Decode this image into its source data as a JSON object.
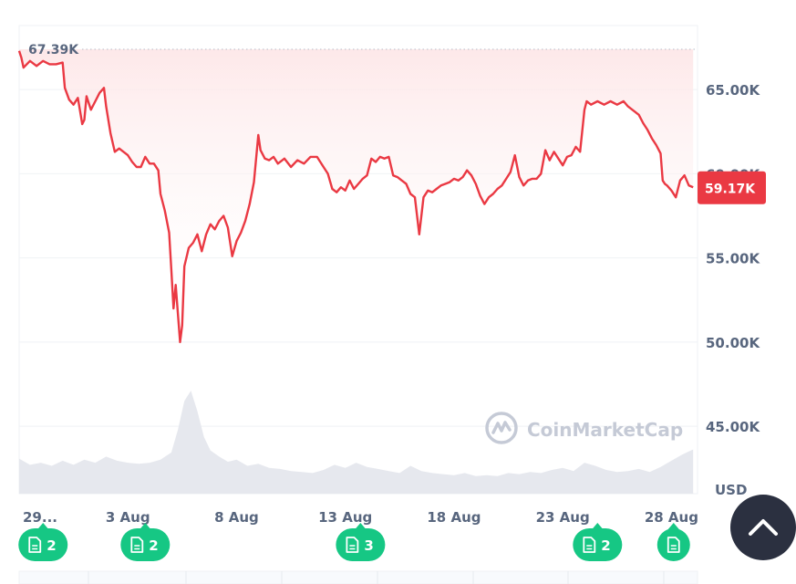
{
  "chart_data": {
    "type": "line",
    "currency_label": "USD",
    "y_ticks": [
      {
        "value": 65000,
        "label": "65.00K"
      },
      {
        "value": 60000,
        "label": "60.00K"
      },
      {
        "value": 55000,
        "label": "55.00K"
      },
      {
        "value": 50000,
        "label": "50.00K"
      },
      {
        "value": 45000,
        "label": "45.00K"
      }
    ],
    "ylim": [
      41000,
      68800
    ],
    "x_ticks": [
      {
        "day": 29,
        "label": "29..."
      },
      {
        "day": 34,
        "label": "3 Aug"
      },
      {
        "day": 39,
        "label": "8 Aug"
      },
      {
        "day": 44,
        "label": "13 Aug"
      },
      {
        "day": 49,
        "label": "18 Aug"
      },
      {
        "day": 54,
        "label": "23 Aug"
      },
      {
        "day": 59,
        "label": "28 Aug"
      }
    ],
    "xlim": [
      29,
      60.2
    ],
    "max_reference": {
      "value": 67390,
      "label": "67.39K"
    },
    "current_price": {
      "value": 59170,
      "label": "59.17K"
    },
    "series": [
      {
        "points": [
          [
            29.0,
            67300
          ],
          [
            29.1,
            66900
          ],
          [
            29.2,
            66300
          ],
          [
            29.5,
            66700
          ],
          [
            29.8,
            66400
          ],
          [
            30.1,
            66700
          ],
          [
            30.4,
            66500
          ],
          [
            30.7,
            66500
          ],
          [
            31.0,
            66600
          ],
          [
            31.1,
            65100
          ],
          [
            31.3,
            64400
          ],
          [
            31.5,
            64100
          ],
          [
            31.7,
            64500
          ],
          [
            31.9,
            62950
          ],
          [
            32.0,
            63200
          ],
          [
            32.1,
            64600
          ],
          [
            32.3,
            63800
          ],
          [
            32.5,
            64300
          ],
          [
            32.7,
            64800
          ],
          [
            32.9,
            65100
          ],
          [
            33.0,
            64000
          ],
          [
            33.2,
            62400
          ],
          [
            33.4,
            61300
          ],
          [
            33.6,
            61500
          ],
          [
            33.8,
            61300
          ],
          [
            34.0,
            61100
          ],
          [
            34.2,
            60700
          ],
          [
            34.4,
            60400
          ],
          [
            34.6,
            60400
          ],
          [
            34.8,
            61000
          ],
          [
            35.0,
            60600
          ],
          [
            35.2,
            60600
          ],
          [
            35.4,
            60200
          ],
          [
            35.5,
            58800
          ],
          [
            35.7,
            57800
          ],
          [
            35.9,
            56500
          ],
          [
            36.0,
            54300
          ],
          [
            36.1,
            52000
          ],
          [
            36.2,
            53400
          ],
          [
            36.3,
            51700
          ],
          [
            36.4,
            50000
          ],
          [
            36.5,
            51000
          ],
          [
            36.6,
            54500
          ],
          [
            36.8,
            55600
          ],
          [
            37.0,
            55900
          ],
          [
            37.2,
            56400
          ],
          [
            37.4,
            55400
          ],
          [
            37.6,
            56400
          ],
          [
            37.8,
            57000
          ],
          [
            38.0,
            56700
          ],
          [
            38.2,
            57200
          ],
          [
            38.4,
            57500
          ],
          [
            38.6,
            56800
          ],
          [
            38.8,
            55100
          ],
          [
            39.0,
            56000
          ],
          [
            39.2,
            56500
          ],
          [
            39.4,
            57200
          ],
          [
            39.6,
            58200
          ],
          [
            39.8,
            59500
          ],
          [
            40.0,
            62300
          ],
          [
            40.1,
            61400
          ],
          [
            40.3,
            60900
          ],
          [
            40.5,
            60800
          ],
          [
            40.7,
            61000
          ],
          [
            40.9,
            60600
          ],
          [
            41.2,
            60900
          ],
          [
            41.5,
            60400
          ],
          [
            41.8,
            60800
          ],
          [
            42.1,
            60600
          ],
          [
            42.4,
            61000
          ],
          [
            42.7,
            61000
          ],
          [
            43.0,
            60400
          ],
          [
            43.2,
            60000
          ],
          [
            43.4,
            59100
          ],
          [
            43.6,
            58900
          ],
          [
            43.8,
            59200
          ],
          [
            44.0,
            59000
          ],
          [
            44.2,
            59600
          ],
          [
            44.4,
            59100
          ],
          [
            44.6,
            59400
          ],
          [
            44.8,
            59700
          ],
          [
            45.0,
            59900
          ],
          [
            45.2,
            60900
          ],
          [
            45.4,
            60700
          ],
          [
            45.6,
            61000
          ],
          [
            45.8,
            60900
          ],
          [
            46.0,
            61000
          ],
          [
            46.2,
            59900
          ],
          [
            46.4,
            59800
          ],
          [
            46.6,
            59600
          ],
          [
            46.8,
            59400
          ],
          [
            47.0,
            58800
          ],
          [
            47.2,
            58600
          ],
          [
            47.3,
            57500
          ],
          [
            47.4,
            56400
          ],
          [
            47.6,
            58600
          ],
          [
            47.8,
            59000
          ],
          [
            48.0,
            58900
          ],
          [
            48.2,
            59100
          ],
          [
            48.4,
            59300
          ],
          [
            48.6,
            59400
          ],
          [
            48.8,
            59500
          ],
          [
            49.0,
            59700
          ],
          [
            49.2,
            59600
          ],
          [
            49.4,
            59800
          ],
          [
            49.6,
            60200
          ],
          [
            49.8,
            59900
          ],
          [
            50.0,
            59400
          ],
          [
            50.2,
            58700
          ],
          [
            50.4,
            58200
          ],
          [
            50.6,
            58600
          ],
          [
            50.8,
            58800
          ],
          [
            51.0,
            59100
          ],
          [
            51.2,
            59300
          ],
          [
            51.4,
            59700
          ],
          [
            51.6,
            60100
          ],
          [
            51.8,
            61100
          ],
          [
            52.0,
            59800
          ],
          [
            52.2,
            59300
          ],
          [
            52.4,
            59600
          ],
          [
            52.6,
            59700
          ],
          [
            52.8,
            59700
          ],
          [
            53.0,
            60000
          ],
          [
            53.2,
            61400
          ],
          [
            53.4,
            60800
          ],
          [
            53.6,
            61300
          ],
          [
            53.8,
            60900
          ],
          [
            54.0,
            60500
          ],
          [
            54.2,
            61000
          ],
          [
            54.4,
            61100
          ],
          [
            54.6,
            61600
          ],
          [
            54.8,
            61300
          ],
          [
            55.0,
            63800
          ],
          [
            55.1,
            64300
          ],
          [
            55.3,
            64100
          ],
          [
            55.6,
            64300
          ],
          [
            55.9,
            64100
          ],
          [
            56.2,
            64300
          ],
          [
            56.5,
            64100
          ],
          [
            56.8,
            64300
          ],
          [
            57.0,
            64000
          ],
          [
            57.3,
            63700
          ],
          [
            57.5,
            63500
          ],
          [
            57.7,
            63000
          ],
          [
            57.9,
            62600
          ],
          [
            58.1,
            62100
          ],
          [
            58.3,
            61700
          ],
          [
            58.5,
            61200
          ],
          [
            58.6,
            59600
          ],
          [
            58.7,
            59400
          ],
          [
            58.8,
            59300
          ],
          [
            59.0,
            59000
          ],
          [
            59.2,
            58600
          ],
          [
            59.4,
            59600
          ],
          [
            59.6,
            59900
          ],
          [
            59.8,
            59300
          ],
          [
            60.0,
            59200
          ]
        ]
      }
    ],
    "volume": [
      [
        29.0,
        0.34
      ],
      [
        29.5,
        0.28
      ],
      [
        30.0,
        0.3
      ],
      [
        30.5,
        0.27
      ],
      [
        31.0,
        0.32
      ],
      [
        31.5,
        0.28
      ],
      [
        32.0,
        0.33
      ],
      [
        32.5,
        0.3
      ],
      [
        33.0,
        0.36
      ],
      [
        33.5,
        0.32
      ],
      [
        34.0,
        0.3
      ],
      [
        34.5,
        0.29
      ],
      [
        35.0,
        0.3
      ],
      [
        35.5,
        0.33
      ],
      [
        36.0,
        0.4
      ],
      [
        36.3,
        0.62
      ],
      [
        36.6,
        0.9
      ],
      [
        36.9,
        1.0
      ],
      [
        37.2,
        0.8
      ],
      [
        37.5,
        0.55
      ],
      [
        37.8,
        0.42
      ],
      [
        38.2,
        0.36
      ],
      [
        38.6,
        0.31
      ],
      [
        39.0,
        0.33
      ],
      [
        39.5,
        0.27
      ],
      [
        40.0,
        0.29
      ],
      [
        40.5,
        0.25
      ],
      [
        41.0,
        0.24
      ],
      [
        41.5,
        0.22
      ],
      [
        42.0,
        0.21
      ],
      [
        42.5,
        0.2
      ],
      [
        43.0,
        0.23
      ],
      [
        43.5,
        0.28
      ],
      [
        44.0,
        0.25
      ],
      [
        44.5,
        0.3
      ],
      [
        45.0,
        0.26
      ],
      [
        45.5,
        0.24
      ],
      [
        46.0,
        0.22
      ],
      [
        46.5,
        0.2
      ],
      [
        47.0,
        0.27
      ],
      [
        47.5,
        0.22
      ],
      [
        48.0,
        0.2
      ],
      [
        48.5,
        0.19
      ],
      [
        49.0,
        0.18
      ],
      [
        49.5,
        0.2
      ],
      [
        50.0,
        0.17
      ],
      [
        50.5,
        0.18
      ],
      [
        51.0,
        0.17
      ],
      [
        51.5,
        0.2
      ],
      [
        52.0,
        0.19
      ],
      [
        52.5,
        0.21
      ],
      [
        53.0,
        0.2
      ],
      [
        53.5,
        0.23
      ],
      [
        54.0,
        0.25
      ],
      [
        54.5,
        0.22
      ],
      [
        55.0,
        0.3
      ],
      [
        55.5,
        0.27
      ],
      [
        56.0,
        0.23
      ],
      [
        56.5,
        0.21
      ],
      [
        57.0,
        0.22
      ],
      [
        57.5,
        0.24
      ],
      [
        58.0,
        0.21
      ],
      [
        58.5,
        0.26
      ],
      [
        59.0,
        0.32
      ],
      [
        59.5,
        0.38
      ],
      [
        60.0,
        0.43
      ]
    ],
    "volume_max_ratio": 0.22,
    "news_markers": [
      {
        "day": 30.1,
        "count": "2"
      },
      {
        "day": 34.8,
        "count": "2"
      },
      {
        "day": 44.7,
        "count": "3"
      },
      {
        "day": 55.6,
        "count": "2"
      },
      {
        "day": 59.1,
        "count": ""
      }
    ],
    "colors": {
      "line": "#ea3943",
      "area_top": "#fdeaea",
      "volume": "#e3e6ec",
      "grid": "#eff2f5",
      "badge": "#16c784",
      "axis_text": "#58667e",
      "scroll_button": "#2b3040"
    }
  },
  "watermark": "CoinMarketCap",
  "scroll_top_icon": "chevron-up-icon"
}
